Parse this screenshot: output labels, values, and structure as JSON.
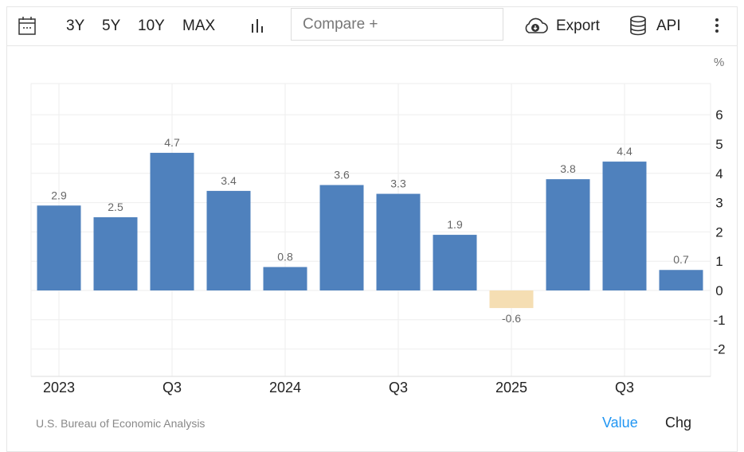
{
  "toolbar": {
    "ranges": [
      "3Y",
      "5Y",
      "10Y",
      "MAX"
    ],
    "compare_placeholder": "Compare +",
    "export": "Export",
    "api": "API"
  },
  "footer": {
    "source": "U.S. Bureau of Economic Analysis",
    "value": "Value",
    "chg": "Chg"
  },
  "chart_data": {
    "type": "bar",
    "unit": "%",
    "categories": [
      "2023 Q1",
      "2023 Q2",
      "2023 Q3",
      "2023 Q4",
      "2024 Q1",
      "2024 Q2",
      "2024 Q3",
      "2024 Q4",
      "2025 Q1",
      "2025 Q2",
      "2025 Q3",
      "2025 Q4"
    ],
    "values": [
      2.9,
      2.5,
      4.7,
      3.4,
      0.8,
      3.6,
      3.3,
      1.9,
      -0.6,
      3.8,
      4.4,
      0.7
    ],
    "x_tick_labels": [
      {
        "index": 0,
        "label": "2023"
      },
      {
        "index": 2,
        "label": "Q3"
      },
      {
        "index": 4,
        "label": "2024"
      },
      {
        "index": 6,
        "label": "Q3"
      },
      {
        "index": 8,
        "label": "2025"
      },
      {
        "index": 10,
        "label": "Q3"
      }
    ],
    "y_ticks": [
      6,
      5,
      4,
      3,
      2,
      1,
      0,
      -1,
      -2
    ],
    "ylim": [
      -3,
      7
    ],
    "grid": true,
    "colors": {
      "positive": "#4f81bd",
      "negative": "#f5deb3"
    }
  }
}
